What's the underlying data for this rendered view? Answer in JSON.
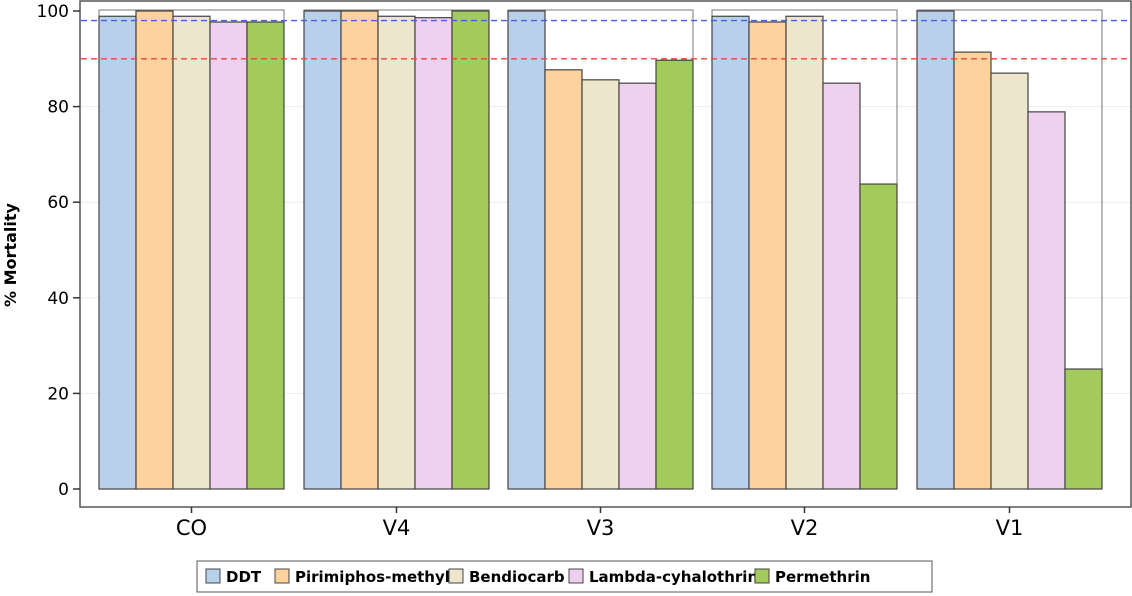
{
  "chart_data": {
    "type": "bar",
    "title": "",
    "xlabel": "",
    "ylabel": "% Mortality",
    "ylim": [
      0,
      100
    ],
    "yticks": [
      0,
      20,
      40,
      60,
      80,
      100
    ],
    "grid": true,
    "legend_position": "bottom",
    "categories": [
      "CO",
      "V4",
      "V3",
      "V2",
      "V1"
    ],
    "series": [
      {
        "name": "DDT",
        "color": "#b8d0ec",
        "values": [
          98.9,
          100,
          100,
          98.9,
          100
        ]
      },
      {
        "name": "Pirimiphos-methyl",
        "color": "#fdd29c",
        "values": [
          100,
          100,
          87.7,
          97.7,
          91.4
        ]
      },
      {
        "name": "Bendiocarb",
        "color": "#ede6cc",
        "values": [
          98.9,
          98.9,
          85.6,
          98.9,
          87.0
        ]
      },
      {
        "name": "Lambda-cyhalothrin",
        "color": "#efd0ee",
        "values": [
          97.7,
          98.6,
          84.9,
          84.9,
          78.9
        ]
      },
      {
        "name": "Permethrin",
        "color": "#a2cb5b",
        "values": [
          97.7,
          100,
          89.7,
          63.8,
          25.1
        ]
      }
    ],
    "reference_lines": [
      {
        "value": 98,
        "color": "#4a5ee0",
        "style": "dashed"
      },
      {
        "value": 90,
        "color": "#e8463c",
        "style": "dashed"
      }
    ]
  }
}
